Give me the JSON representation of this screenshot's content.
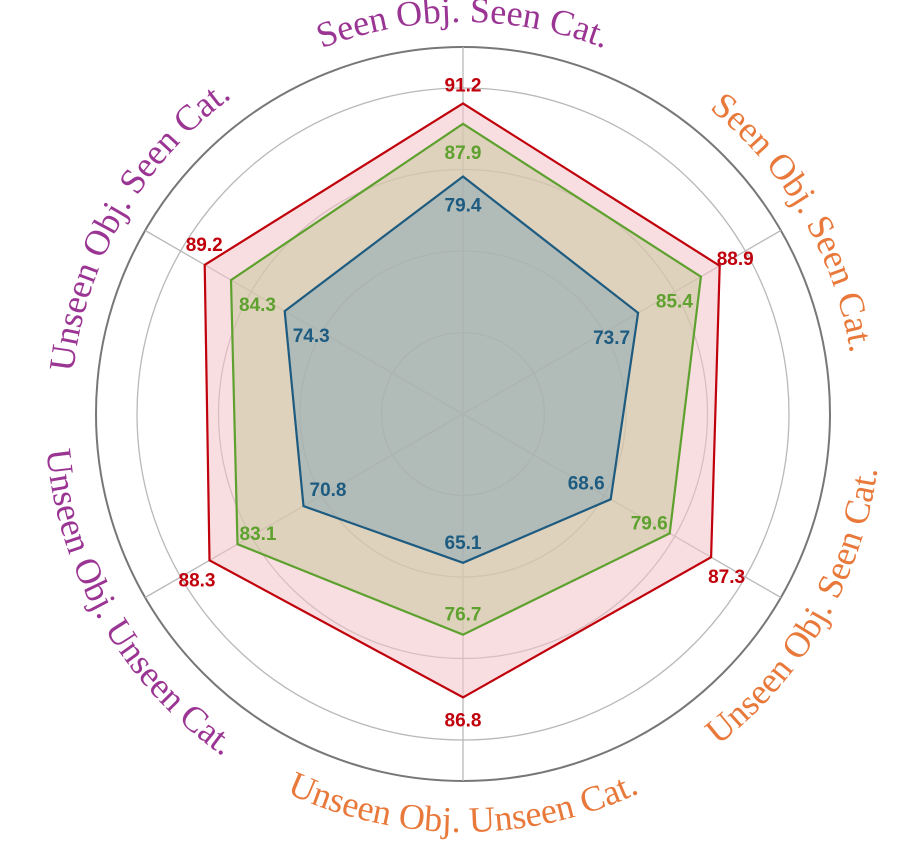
{
  "chart_data": {
    "type": "radar",
    "title": "",
    "axes": [
      {
        "label": "Seen Obj. Seen Cat.",
        "color": "#9b3593"
      },
      {
        "label": "Seen Obj. Seen Cat.",
        "color": "#e8793b"
      },
      {
        "label": "Unseen Obj. Seen Cat.",
        "color": "#e8793b"
      },
      {
        "label": "Unseen Obj. Unseen Cat.",
        "color": "#e8793b"
      },
      {
        "label": "Unseen Obj. Unseen Cat.",
        "color": "#9b3593"
      },
      {
        "label": "Unseen Obj. Seen Cat.",
        "color": "#9b3593"
      }
    ],
    "series": [
      {
        "values": [
          91.2,
          88.9,
          87.3,
          86.8,
          88.3,
          89.2
        ],
        "line_color": "#c0000b",
        "fill_color": "#f4c2c8",
        "label_color": "#c0000b"
      },
      {
        "values": [
          87.9,
          85.4,
          79.6,
          76.7,
          83.1,
          84.3
        ],
        "line_color": "#5ea12f",
        "fill_color": "#c9c89e",
        "label_color": "#5ea12f"
      },
      {
        "values": [
          79.4,
          73.7,
          68.6,
          65.1,
          70.8,
          74.3
        ],
        "line_color": "#1d5b80",
        "fill_color": "#8da8b5",
        "label_color": "#1d5b80"
      }
    ],
    "grid": true,
    "grid_levels": 5
  }
}
